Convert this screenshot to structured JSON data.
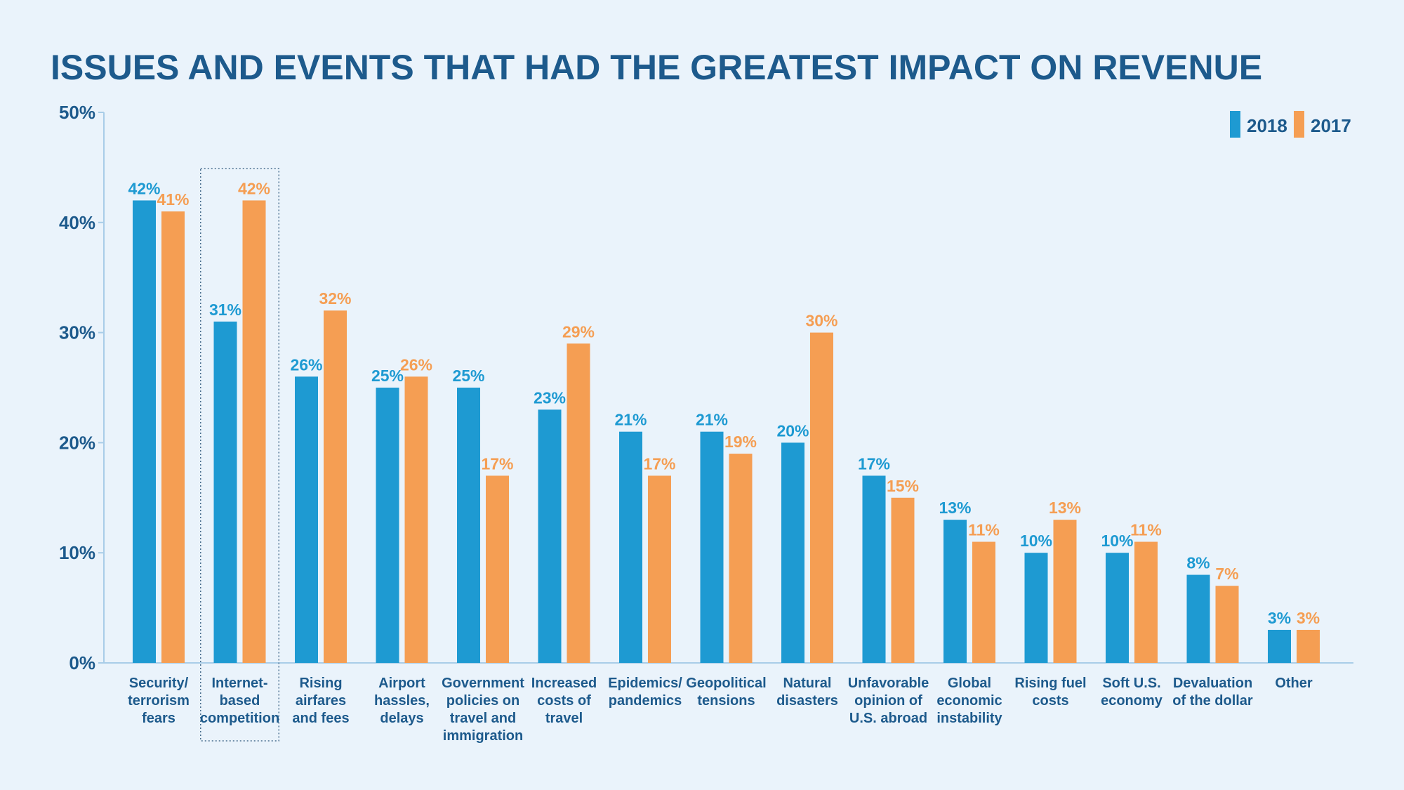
{
  "chart_data": {
    "type": "bar",
    "title": "ISSUES AND EVENTS THAT HAD THE GREATEST IMPACT ON REVENUE",
    "xlabel": "",
    "ylabel": "",
    "ylim": [
      0,
      50
    ],
    "yticks": [
      "0%",
      "10%",
      "20%",
      "30%",
      "40%",
      "50%"
    ],
    "ytick_values": [
      0,
      10,
      20,
      30,
      40,
      50
    ],
    "legend_position": "top-right",
    "grid": false,
    "highlighted_category_index": 1,
    "categories": [
      [
        "Security/",
        "terrorism",
        "fears"
      ],
      [
        "Internet-",
        "based",
        "competition"
      ],
      [
        "Rising",
        "airfares",
        "and fees"
      ],
      [
        "Airport",
        "hassles,",
        "delays"
      ],
      [
        "Government",
        "policies on",
        "travel and",
        "immigration"
      ],
      [
        "Increased",
        "costs of",
        "travel"
      ],
      [
        "Epidemics/",
        "pandemics"
      ],
      [
        "Geopolitical",
        "tensions"
      ],
      [
        "Natural",
        "disasters"
      ],
      [
        "Unfavorable",
        "opinion of",
        "U.S. abroad"
      ],
      [
        "Global",
        "economic",
        "instability"
      ],
      [
        "Rising fuel",
        "costs"
      ],
      [
        "Soft U.S.",
        "economy"
      ],
      [
        "Devaluation",
        "of the dollar"
      ],
      [
        "Other"
      ]
    ],
    "series": [
      {
        "name": "2018",
        "color": "#1e9ad2",
        "values": [
          42,
          31,
          26,
          25,
          25,
          23,
          21,
          21,
          20,
          17,
          13,
          10,
          10,
          8,
          3
        ],
        "labels": [
          "42%",
          "31%",
          "26%",
          "25%",
          "25%",
          "23%",
          "21%",
          "21%",
          "20%",
          "17%",
          "13%",
          "10%",
          "10%",
          "8%",
          "3%"
        ]
      },
      {
        "name": "2017",
        "color": "#f59e53",
        "values": [
          41,
          42,
          32,
          26,
          17,
          29,
          17,
          19,
          30,
          15,
          11,
          13,
          11,
          7,
          3
        ],
        "labels": [
          "41%",
          "42%",
          "32%",
          "26%",
          "17%",
          "29%",
          "17%",
          "19%",
          "30%",
          "15%",
          "11%",
          "13%",
          "11%",
          "7%",
          "3%"
        ]
      }
    ]
  }
}
